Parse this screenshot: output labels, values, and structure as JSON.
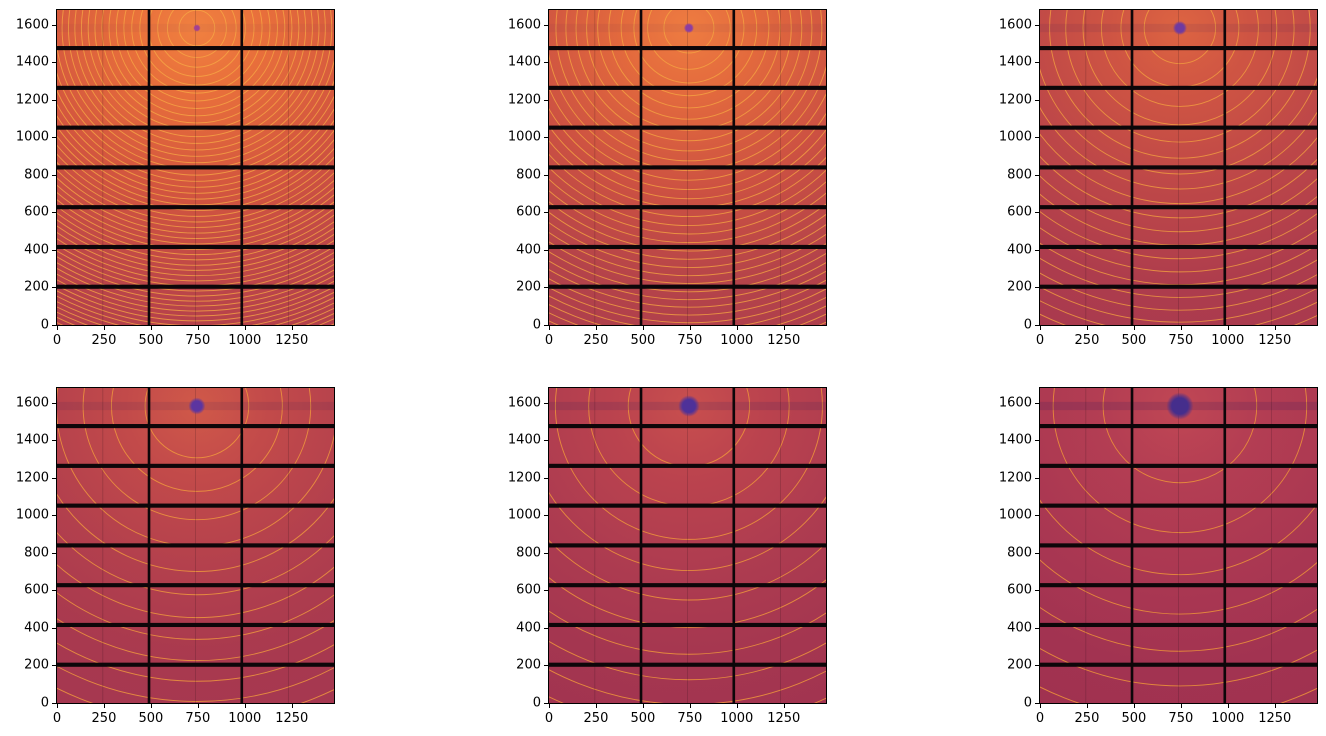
{
  "figure": {
    "background": "#ffffff",
    "rows": 2,
    "cols": 3,
    "description_texts": []
  },
  "axes": {
    "x_range": [
      0,
      1475
    ],
    "y_range": [
      0,
      1679
    ],
    "x_tick_values": [
      0,
      250,
      500,
      750,
      1000,
      1250
    ],
    "x_tick_labels": [
      "0",
      "250",
      "500",
      "750",
      "1000",
      "1250"
    ],
    "y_tick_values": [
      0,
      200,
      400,
      600,
      800,
      1000,
      1200,
      1400,
      1600
    ],
    "y_tick_labels": [
      "0",
      "200",
      "400",
      "600",
      "800",
      "1000",
      "1200",
      "1400",
      "1600"
    ],
    "grid": false,
    "spine_color": "#000000",
    "tick_color": "#000000"
  },
  "detector": {
    "module_rows": 8,
    "module_cols": 3,
    "h_gap_y_centers": [
      204,
      416,
      628,
      840,
      1052,
      1264,
      1476
    ],
    "h_gap_height": 22,
    "v_gap_x_centers": [
      490,
      984
    ],
    "v_gap_width": 14,
    "chip_line_x": [
      244,
      738,
      1232
    ],
    "chip_line_color": "#1a0a14",
    "gap_color": "#0d0609"
  },
  "chart_data": [
    {
      "id": "subplot-1",
      "type": "heatmap",
      "title": "",
      "xlabel": "",
      "ylabel": "",
      "beam_center": {
        "x": 745,
        "y": 1583
      },
      "beamstop_radius": 13,
      "beamstop_color": "#a23f93",
      "ring_color": "#f8ab45",
      "ring_width": 5,
      "ring_opacity": 0.75,
      "streak_color": "#2d1a5a",
      "streak_opacity": 0.04,
      "bg_stops": [
        {
          "at": 0.0,
          "color": "#f08040"
        },
        {
          "at": 0.2,
          "color": "#e86f3b"
        },
        {
          "at": 0.5,
          "color": "#d2553f"
        },
        {
          "at": 0.8,
          "color": "#bb4549"
        },
        {
          "at": 1.0,
          "color": "#b23f4b"
        }
      ],
      "ring_radii": [
        95,
        157,
        209,
        258,
        304,
        347,
        389,
        429,
        468,
        506,
        543,
        579,
        615,
        650,
        684,
        718,
        752,
        784,
        817,
        849,
        881,
        912,
        943,
        973,
        1004,
        1034,
        1063,
        1093,
        1122,
        1151,
        1180,
        1208,
        1236,
        1265,
        1292,
        1320,
        1348,
        1375,
        1402,
        1429,
        1456,
        1482,
        1509,
        1535,
        1561,
        1587,
        1612,
        1638,
        1663,
        1688,
        1713,
        1738,
        1762
      ]
    },
    {
      "id": "subplot-2",
      "type": "heatmap",
      "title": "",
      "xlabel": "",
      "ylabel": "",
      "beam_center": {
        "x": 745,
        "y": 1583
      },
      "beamstop_radius": 18,
      "beamstop_color": "#8c3da2",
      "ring_color": "#f6a642",
      "ring_width": 5,
      "ring_opacity": 0.78,
      "streak_color": "#2d1a5a",
      "streak_opacity": 0.05,
      "bg_stops": [
        {
          "at": 0.0,
          "color": "#ee7c41"
        },
        {
          "at": 0.2,
          "color": "#e36a3d"
        },
        {
          "at": 0.5,
          "color": "#cc5142"
        },
        {
          "at": 0.8,
          "color": "#b4434a"
        },
        {
          "at": 1.0,
          "color": "#ae3e4c"
        }
      ],
      "ring_radii": [
        133,
        220,
        293,
        361,
        426,
        486,
        545,
        601,
        655,
        708,
        760,
        811,
        861,
        910,
        958,
        1005,
        1053,
        1098,
        1144,
        1189,
        1233,
        1277,
        1320,
        1362,
        1406,
        1448,
        1488,
        1530,
        1571,
        1611,
        1652,
        1691,
        1730
      ]
    },
    {
      "id": "subplot-3",
      "type": "heatmap",
      "title": "",
      "xlabel": "",
      "ylabel": "",
      "beam_center": {
        "x": 745,
        "y": 1583
      },
      "beamstop_radius": 25,
      "beamstop_color": "#6f3aa0",
      "ring_color": "#f3a040",
      "ring_width": 5,
      "ring_opacity": 0.8,
      "streak_color": "#2d1a5a",
      "streak_opacity": 0.09,
      "bg_stops": [
        {
          "at": 0.0,
          "color": "#dd6442"
        },
        {
          "at": 0.2,
          "color": "#cf5543"
        },
        {
          "at": 0.5,
          "color": "#bd4748"
        },
        {
          "at": 0.8,
          "color": "#ad3c4d"
        },
        {
          "at": 1.0,
          "color": "#a93a4e"
        }
      ],
      "ring_radii": [
        190,
        314,
        418,
        516,
        608,
        694,
        778,
        858,
        936,
        1012,
        1086,
        1158,
        1230,
        1300,
        1368,
        1436,
        1504,
        1568,
        1634,
        1698,
        1762
      ]
    },
    {
      "id": "subplot-4",
      "type": "heatmap",
      "title": "",
      "xlabel": "",
      "ylabel": "",
      "beam_center": {
        "x": 745,
        "y": 1583
      },
      "beamstop_radius": 30,
      "beamstop_color": "#5c35a0",
      "ring_color": "#f19b3d",
      "ring_width": 5,
      "ring_opacity": 0.82,
      "streak_color": "#2d1a5a",
      "streak_opacity": 0.11,
      "bg_stops": [
        {
          "at": 0.0,
          "color": "#d05949"
        },
        {
          "at": 0.22,
          "color": "#c24a4a"
        },
        {
          "at": 0.5,
          "color": "#b3404d"
        },
        {
          "at": 0.8,
          "color": "#a8394f"
        },
        {
          "at": 1.0,
          "color": "#a53750"
        }
      ],
      "ring_radii": [
        276,
        455,
        606,
        748,
        882,
        1006,
        1128,
        1244,
        1357,
        1467,
        1575,
        1679
      ]
    },
    {
      "id": "subplot-5",
      "type": "heatmap",
      "title": "",
      "xlabel": "",
      "ylabel": "",
      "beam_center": {
        "x": 745,
        "y": 1583
      },
      "beamstop_radius": 38,
      "beamstop_color": "#4e3199",
      "ring_color": "#ef973b",
      "ring_width": 5,
      "ring_opacity": 0.85,
      "streak_color": "#2d1a5a",
      "streak_opacity": 0.14,
      "bg_stops": [
        {
          "at": 0.0,
          "color": "#c84f4e"
        },
        {
          "at": 0.22,
          "color": "#bb434e"
        },
        {
          "at": 0.5,
          "color": "#ae3c50"
        },
        {
          "at": 0.8,
          "color": "#a43650"
        },
        {
          "at": 1.0,
          "color": "#a23450"
        }
      ],
      "ring_radii": [
        323,
        534,
        711,
        877,
        1034,
        1180,
        1323,
        1459,
        1591,
        1720
      ]
    },
    {
      "id": "subplot-6",
      "type": "heatmap",
      "title": "",
      "xlabel": "",
      "ylabel": "",
      "beam_center": {
        "x": 745,
        "y": 1583
      },
      "beamstop_radius": 48,
      "beamstop_color": "#452e8c",
      "ring_color": "#ee9539",
      "ring_width": 5,
      "ring_opacity": 0.85,
      "streak_color": "#2d1a5a",
      "streak_opacity": 0.17,
      "bg_stops": [
        {
          "at": 0.0,
          "color": "#c04754"
        },
        {
          "at": 0.22,
          "color": "#b43e53"
        },
        {
          "at": 0.5,
          "color": "#ab3852"
        },
        {
          "at": 0.8,
          "color": "#a23351"
        },
        {
          "at": 1.0,
          "color": "#a03250"
        }
      ],
      "ring_radii": [
        409,
        675,
        899,
        1109,
        1307,
        1492,
        1673
      ]
    }
  ]
}
